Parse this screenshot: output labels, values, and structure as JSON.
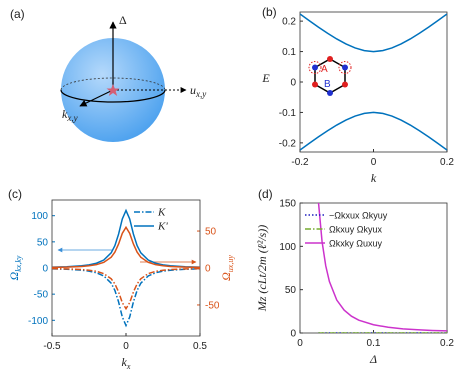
{
  "diagram": {
    "label": "(a)",
    "axis_up": "Δ",
    "axis_right": {
      "text": "u",
      "sub": "x,y"
    },
    "axis_front": {
      "text": "k",
      "sub": "x,y"
    }
  },
  "chart_data": [
    {
      "type": "line",
      "label": "(b)",
      "x_label": {
        "text": "k"
      },
      "y_label": {
        "text": "E"
      },
      "x": [
        -0.2,
        -0.175,
        -0.15,
        -0.125,
        -0.1,
        -0.075,
        -0.05,
        -0.025,
        0,
        0.025,
        0.05,
        0.075,
        0.1,
        0.125,
        0.15,
        0.175,
        0.2
      ],
      "series": [
        {
          "color": "#0072bd",
          "dash": "solid",
          "values": [
            0.2236,
            0.2016,
            0.1803,
            0.1601,
            0.1414,
            0.125,
            0.1118,
            0.1031,
            0.1,
            0.1031,
            0.1118,
            0.125,
            0.1414,
            0.1601,
            0.1803,
            0.2016,
            0.2236
          ]
        },
        {
          "color": "#0072bd",
          "dash": "solid",
          "values": [
            -0.2236,
            -0.2016,
            -0.1803,
            -0.1601,
            -0.1414,
            -0.125,
            -0.1118,
            -0.1031,
            -0.1,
            -0.1031,
            -0.1118,
            -0.125,
            -0.1414,
            -0.1601,
            -0.1803,
            -0.2016,
            -0.2236
          ]
        }
      ],
      "xlim": [
        -0.2,
        0.2
      ],
      "ylim": [
        -0.23,
        0.23
      ],
      "xticks": [
        -0.2,
        0,
        0.2
      ],
      "yticks": [
        -0.2,
        -0.1,
        0,
        0.1,
        0.2
      ],
      "inset_labels": [
        "A",
        "B"
      ]
    },
    {
      "type": "line",
      "label": "(c)",
      "x_label": {
        "text": "k",
        "sub": "x"
      },
      "y_label": {
        "text": "Ω",
        "sub": "kx,ky"
      },
      "y2_label": {
        "text": "Ω",
        "sub": "ux,uy"
      },
      "x": [
        -0.5,
        -0.4,
        -0.3,
        -0.25,
        -0.2,
        -0.15,
        -0.1,
        -0.075,
        -0.05,
        -0.025,
        0,
        0.025,
        0.05,
        0.075,
        0.1,
        0.15,
        0.2,
        0.25,
        0.3,
        0.4,
        0.5
      ],
      "series": [
        {
          "name": "K",
          "color": "#0072bd",
          "dash": "dashdot",
          "values": [
            -1.6,
            -2.4,
            -4.2,
            -6,
            -9.1,
            -15.2,
            -29.1,
            -42.9,
            -64.9,
            -93.7,
            -110,
            -93.7,
            -64.9,
            -42.9,
            -29.1,
            -15.2,
            -9.1,
            -6,
            -4.2,
            -2.4,
            -1.6
          ]
        },
        {
          "name": "K'",
          "color": "#0072bd",
          "dash": "solid",
          "values": [
            1.6,
            2.4,
            4.2,
            6,
            9.1,
            15.2,
            29.1,
            42.9,
            64.9,
            93.7,
            110,
            93.7,
            64.9,
            42.9,
            29.1,
            15.2,
            9.1,
            6,
            4.2,
            2.4,
            1.6
          ]
        },
        {
          "color": "#d95319",
          "dash": "solid",
          "axis": "y2",
          "values": [
            0.8,
            1.2,
            2.1,
            3,
            4.5,
            7.6,
            14.6,
            21.5,
            32.5,
            46.9,
            55,
            46.9,
            32.5,
            21.5,
            14.6,
            7.6,
            4.5,
            3,
            2.1,
            1.2,
            0.8
          ]
        },
        {
          "color": "#d95319",
          "dash": "dashdot",
          "axis": "y2",
          "values": [
            -0.8,
            -1.2,
            -2.1,
            -3,
            -4.5,
            -7.6,
            -14.6,
            -21.5,
            -32.5,
            -46.9,
            -55,
            -46.9,
            -32.5,
            -21.5,
            -14.6,
            -7.6,
            -4.5,
            -3,
            -2.1,
            -1.2,
            -0.8
          ]
        }
      ],
      "xlim": [
        -0.5,
        0.5
      ],
      "ylim": [
        -130,
        130
      ],
      "y2lim": [
        -92,
        92
      ],
      "xticks": [
        -0.5,
        0,
        0.5
      ],
      "yticks": [
        -100,
        -50,
        0,
        50,
        100
      ],
      "y2ticks": [
        -50,
        0,
        50
      ],
      "legend": "upper right"
    },
    {
      "type": "line",
      "label": "(d)",
      "x_label": {
        "text": "Δ"
      },
      "y_label": {
        "text": "Mz (cLt/2m (ℓ²/s))"
      },
      "x": [
        0.025,
        0.03,
        0.035,
        0.04,
        0.05,
        0.06,
        0.07,
        0.08,
        0.1,
        0.12,
        0.14,
        0.16,
        0.18,
        0.2
      ],
      "series": [
        {
          "name": "−Ωkxux Ωkyuy",
          "color": "#1f1fbf",
          "dash": "dot",
          "values": [
            0,
            0,
            0,
            0,
            0,
            0,
            0,
            0,
            0,
            0,
            0,
            0,
            0,
            0
          ]
        },
        {
          "name": "Ωkxuy Ωkyux",
          "color": "#77ac30",
          "dash": "dashdot",
          "values": [
            0,
            0,
            0,
            0,
            0,
            0,
            0,
            0,
            0,
            0,
            0,
            0,
            0,
            0
          ]
        },
        {
          "name": "Ωkxky Ωuxuy",
          "color": "#cc33cc",
          "dash": "solid",
          "values": [
            152,
            105.6,
            77.6,
            59.4,
            38,
            26.4,
            19.4,
            14.8,
            9.5,
            6.6,
            4.8,
            3.7,
            2.9,
            2.4
          ]
        }
      ],
      "xlim": [
        0,
        0.2
      ],
      "ylim": [
        0,
        150
      ],
      "xticks": [
        0,
        0.1,
        0.2
      ],
      "yticks": [
        0,
        50,
        100,
        150
      ],
      "legend": "upper left"
    }
  ]
}
